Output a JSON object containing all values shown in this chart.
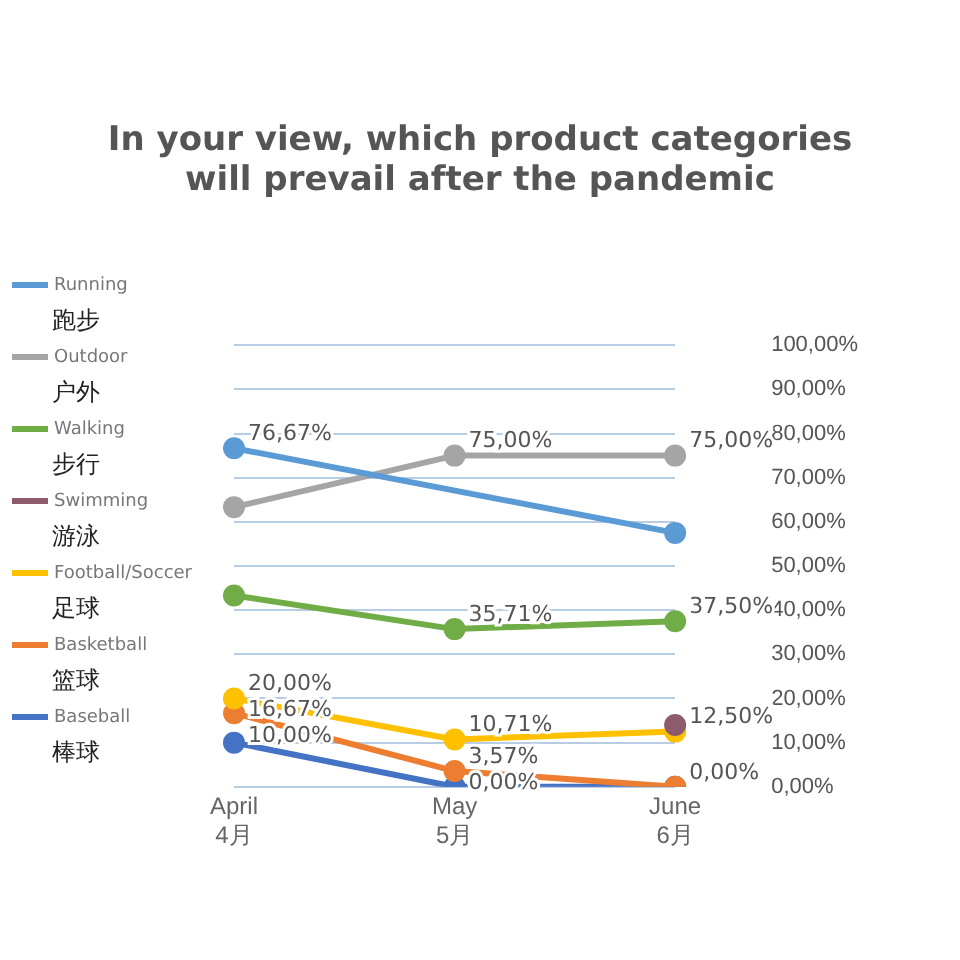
{
  "chart_data": {
    "type": "line",
    "title": "In your view, which product categories will prevail after the pandemic",
    "categories": [
      "April\n4月",
      "May\n5月",
      "June\n6月"
    ],
    "series": [
      {
        "name": "Running\n跑步",
        "color": "#5b9bd5",
        "values": [
          76.67,
          null,
          57.5
        ],
        "value_labels": [
          "76,67%",
          null,
          null
        ]
      },
      {
        "name": "Outdoor\n户外",
        "color": "#a5a5a5",
        "values": [
          63.33,
          75,
          75
        ],
        "value_labels": [
          null,
          "75,00%",
          "75,00%"
        ]
      },
      {
        "name": "Walking\n步行",
        "color": "#70ad47",
        "values": [
          43.33,
          35.71,
          37.5
        ],
        "value_labels": [
          null,
          "35,71%",
          "37,50%"
        ]
      },
      {
        "name": "Swimming\n游泳",
        "color": "#8e5a6e",
        "values": [
          null,
          null,
          14
        ],
        "value_labels": [
          null,
          null,
          null
        ]
      },
      {
        "name": "Football/Soccer\n足球",
        "color": "#ffc000",
        "values": [
          20,
          10.71,
          12.5
        ],
        "value_labels": [
          "20,00%",
          "10,71%",
          "12,50%"
        ]
      },
      {
        "name": "Basketball\n篮球",
        "color": "#ed7d31",
        "values": [
          16.67,
          3.57,
          0
        ],
        "value_labels": [
          "16,67%",
          "3,57%",
          null
        ]
      },
      {
        "name": "Baseball\n棒球",
        "color": "#4472c4",
        "values": [
          10,
          0,
          0
        ],
        "value_labels": [
          "10,00%",
          "0,00%",
          "0,00%"
        ]
      }
    ],
    "ylim": [
      0,
      100
    ],
    "yticks": [
      {
        "value": 0,
        "label": "0,00%"
      },
      {
        "value": 10,
        "label": "10,00%"
      },
      {
        "value": 20,
        "label": "20,00%"
      },
      {
        "value": 30,
        "label": "30,00%"
      },
      {
        "value": 40,
        "label": "40,00%"
      },
      {
        "value": 50,
        "label": "50,00%"
      },
      {
        "value": 60,
        "label": "60,00%"
      },
      {
        "value": 70,
        "label": "70,00%"
      },
      {
        "value": 80,
        "label": "80,00%"
      },
      {
        "value": 90,
        "label": "90,00%"
      },
      {
        "value": 100,
        "label": "100,00%"
      }
    ],
    "grid": "y",
    "legend": "left",
    "marker": "circle",
    "line_style": "solid"
  }
}
